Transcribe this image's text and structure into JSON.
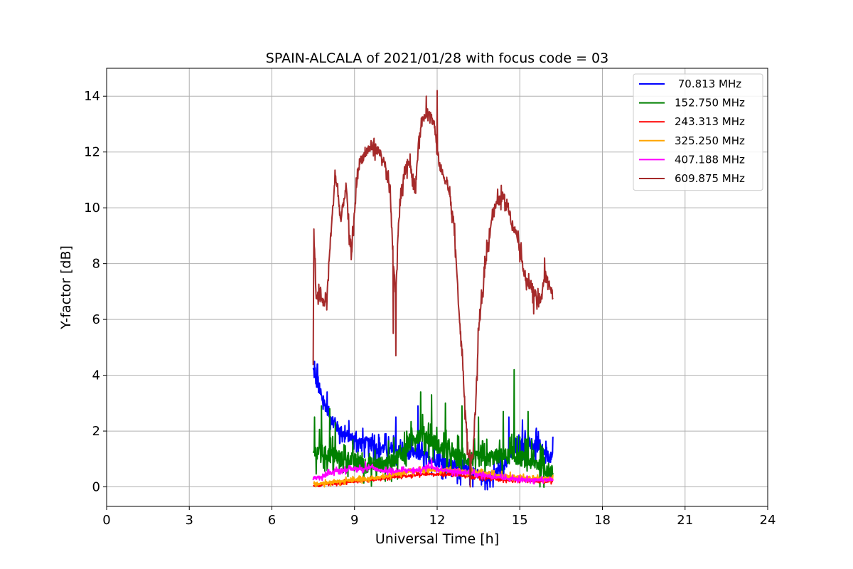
{
  "chart_data": {
    "type": "line",
    "title": "SPAIN-ALCALA of 2021/01/28 with focus code = 03",
    "xlabel": "Universal Time [h]",
    "ylabel": "Y-factor [dB]",
    "xlim": [
      0,
      24
    ],
    "ylim": [
      -0.7,
      15
    ],
    "xticks": [
      0,
      3,
      6,
      9,
      12,
      15,
      18,
      21,
      24
    ],
    "yticks": [
      0,
      2,
      4,
      6,
      8,
      10,
      12,
      14
    ],
    "grid": true,
    "legend_position": "top-right",
    "series": [
      {
        "name": " 70.813 MHz",
        "color": "#0000ff",
        "x": [
          7.5,
          7.6,
          7.7,
          7.8,
          8.0,
          8.2,
          8.4,
          8.6,
          8.8,
          9.0,
          9.2,
          9.4,
          9.6,
          9.8,
          10.0,
          10.3,
          10.6,
          10.9,
          11.2,
          11.5,
          11.8,
          12.1,
          12.4,
          12.7,
          13.0,
          13.3,
          13.6,
          13.9,
          14.2,
          14.5,
          14.8,
          15.0,
          15.2,
          15.5,
          15.8,
          16.0,
          16.2
        ],
        "y": [
          4.2,
          3.8,
          3.5,
          3.2,
          2.8,
          2.4,
          2.1,
          1.9,
          1.8,
          1.7,
          1.6,
          1.6,
          1.5,
          1.4,
          1.4,
          1.3,
          1.3,
          1.2,
          1.2,
          1.1,
          1.0,
          0.9,
          0.8,
          0.7,
          0.6,
          0.5,
          0.4,
          0.3,
          0.5,
          0.9,
          1.3,
          1.5,
          1.6,
          1.5,
          1.3,
          1.1,
          1.0
        ],
        "noise": 0.6,
        "spikes": [
          [
            7.55,
            4.5
          ],
          [
            7.65,
            4.4
          ],
          [
            8.0,
            3.4
          ],
          [
            9.3,
            2.1
          ],
          [
            9.65,
            1.9
          ],
          [
            10.1,
            1.9
          ],
          [
            10.5,
            2.5
          ],
          [
            11.3,
            2.9
          ],
          [
            13.3,
            0.0
          ],
          [
            14.6,
            2.5
          ],
          [
            15.1,
            2.4
          ],
          [
            15.6,
            2.1
          ],
          [
            16.2,
            1.8
          ]
        ]
      },
      {
        "name": "152.750 MHz",
        "color": "#008000",
        "x": [
          7.5,
          7.7,
          7.9,
          8.2,
          8.5,
          8.8,
          9.1,
          9.4,
          9.7,
          10.0,
          10.3,
          10.6,
          10.9,
          11.2,
          11.5,
          11.8,
          12.1,
          12.4,
          12.7,
          13.0,
          13.3,
          13.6,
          13.9,
          14.2,
          14.5,
          14.8,
          15.1,
          15.4,
          15.7,
          16.0,
          16.2
        ],
        "y": [
          1.2,
          1.3,
          1.2,
          1.1,
          1.0,
          1.0,
          0.9,
          0.8,
          0.8,
          0.8,
          0.9,
          1.1,
          1.4,
          1.8,
          1.9,
          1.7,
          1.4,
          1.2,
          1.1,
          1.0,
          1.0,
          1.0,
          1.0,
          1.1,
          1.1,
          1.1,
          1.0,
          0.9,
          0.8,
          0.6,
          0.5
        ],
        "noise": 0.8,
        "spikes": [
          [
            7.55,
            2.5
          ],
          [
            7.8,
            2.9
          ],
          [
            8.1,
            2.8
          ],
          [
            8.3,
            2.3
          ],
          [
            11.4,
            3.4
          ],
          [
            11.8,
            3.3
          ],
          [
            12.3,
            3.0
          ],
          [
            12.9,
            2.9
          ],
          [
            13.5,
            2.5
          ],
          [
            14.4,
            2.7
          ],
          [
            14.8,
            4.2
          ],
          [
            15.3,
            2.7
          ]
        ]
      },
      {
        "name": "243.313 MHz",
        "color": "#ff0000",
        "x": [
          7.5,
          8.0,
          8.5,
          9.0,
          9.5,
          10.0,
          10.5,
          11.0,
          11.5,
          12.0,
          12.5,
          13.0,
          13.5,
          14.0,
          14.5,
          15.0,
          15.5,
          16.0,
          16.2
        ],
        "y": [
          0.05,
          0.1,
          0.15,
          0.2,
          0.25,
          0.3,
          0.35,
          0.4,
          0.45,
          0.45,
          0.45,
          0.4,
          0.35,
          0.3,
          0.25,
          0.25,
          0.2,
          0.2,
          0.2
        ],
        "noise": 0.1,
        "spikes": []
      },
      {
        "name": "325.250 MHz",
        "color": "#ffa500",
        "x": [
          7.5,
          8.0,
          8.5,
          9.0,
          9.5,
          10.0,
          10.5,
          11.0,
          11.5,
          12.0,
          12.5,
          13.0,
          13.5,
          14.0,
          14.5,
          15.0,
          15.5,
          16.0,
          16.2
        ],
        "y": [
          0.1,
          0.15,
          0.2,
          0.25,
          0.3,
          0.35,
          0.45,
          0.55,
          0.6,
          0.6,
          0.6,
          0.55,
          0.5,
          0.45,
          0.4,
          0.35,
          0.3,
          0.3,
          0.3
        ],
        "noise": 0.15,
        "spikes": []
      },
      {
        "name": "407.188 MHz",
        "color": "#ff00ff",
        "x": [
          7.5,
          7.8,
          8.1,
          8.4,
          8.7,
          9.0,
          9.3,
          9.6,
          9.9,
          10.2,
          10.5,
          10.8,
          11.1,
          11.4,
          11.7,
          12.0,
          12.3,
          12.6,
          12.9,
          13.2,
          13.5,
          13.8,
          14.1,
          14.4,
          14.7,
          15.0,
          15.3,
          15.6,
          15.9,
          16.2
        ],
        "y": [
          0.3,
          0.35,
          0.5,
          0.6,
          0.6,
          0.65,
          0.65,
          0.7,
          0.6,
          0.55,
          0.55,
          0.6,
          0.6,
          0.6,
          0.75,
          0.65,
          0.6,
          0.55,
          0.5,
          0.5,
          0.45,
          0.4,
          0.35,
          0.3,
          0.3,
          0.25,
          0.25,
          0.25,
          0.25,
          0.25
        ],
        "noise": 0.15,
        "spikes": [
          [
            11.8,
            1.0
          ],
          [
            9.4,
            0.9
          ]
        ]
      },
      {
        "name": "609.875 MHz",
        "color": "#a52a2a",
        "x": [
          7.5,
          7.52,
          7.6,
          7.8,
          7.9,
          8.0,
          8.1,
          8.2,
          8.3,
          8.4,
          8.5,
          8.6,
          8.7,
          8.8,
          8.9,
          9.0,
          9.1,
          9.2,
          9.3,
          9.5,
          9.7,
          9.9,
          10.0,
          10.1,
          10.2,
          10.3,
          10.4,
          10.5,
          10.6,
          10.7,
          10.8,
          10.9,
          11.0,
          11.1,
          11.2,
          11.3,
          11.4,
          11.5,
          11.6,
          11.7,
          11.8,
          11.9,
          12.0,
          12.1,
          12.2,
          12.3,
          12.4,
          12.5,
          12.6,
          12.7,
          12.8,
          12.9,
          13.0,
          13.1,
          13.2,
          13.3,
          13.4,
          13.5,
          13.6,
          13.7,
          13.8,
          13.9,
          14.0,
          14.1,
          14.2,
          14.3,
          14.4,
          14.5,
          14.6,
          14.7,
          14.8,
          14.9,
          15.0,
          15.1,
          15.2,
          15.3,
          15.4,
          15.5,
          15.6,
          15.7,
          15.8,
          15.9,
          16.0,
          16.1,
          16.2
        ],
        "y": [
          4.3,
          9.2,
          6.9,
          6.7,
          6.6,
          6.8,
          8.5,
          9.8,
          11.2,
          10.5,
          9.5,
          10.2,
          10.8,
          9.0,
          8.5,
          9.8,
          11.2,
          11.7,
          11.8,
          12.1,
          12.2,
          12.0,
          11.8,
          11.5,
          11.0,
          10.6,
          8.0,
          7.0,
          9.5,
          10.5,
          11.2,
          11.5,
          11.8,
          11.0,
          10.5,
          12.0,
          13.0,
          13.2,
          13.4,
          13.5,
          13.2,
          13.0,
          12.0,
          11.5,
          11.2,
          11.0,
          10.8,
          10.0,
          9.5,
          8.0,
          6.0,
          5.0,
          3.0,
          1.5,
          0.8,
          1.2,
          3.0,
          5.5,
          6.5,
          7.5,
          8.5,
          9.0,
          9.8,
          10.0,
          10.2,
          10.3,
          10.4,
          10.2,
          10.0,
          9.5,
          9.2,
          9.1,
          8.5,
          8.0,
          7.5,
          7.2,
          7.3,
          7.0,
          6.8,
          6.5,
          7.0,
          7.5,
          7.4,
          7.2,
          6.8
        ],
        "noise": 0.5,
        "spikes": [
          [
            10.5,
            4.7
          ],
          [
            10.4,
            5.5
          ],
          [
            11.6,
            14.0
          ],
          [
            12.0,
            14.2
          ],
          [
            13.2,
            0.0
          ],
          [
            12.9,
            4.7
          ],
          [
            15.5,
            6.2
          ],
          [
            15.9,
            8.2
          ]
        ]
      }
    ]
  }
}
